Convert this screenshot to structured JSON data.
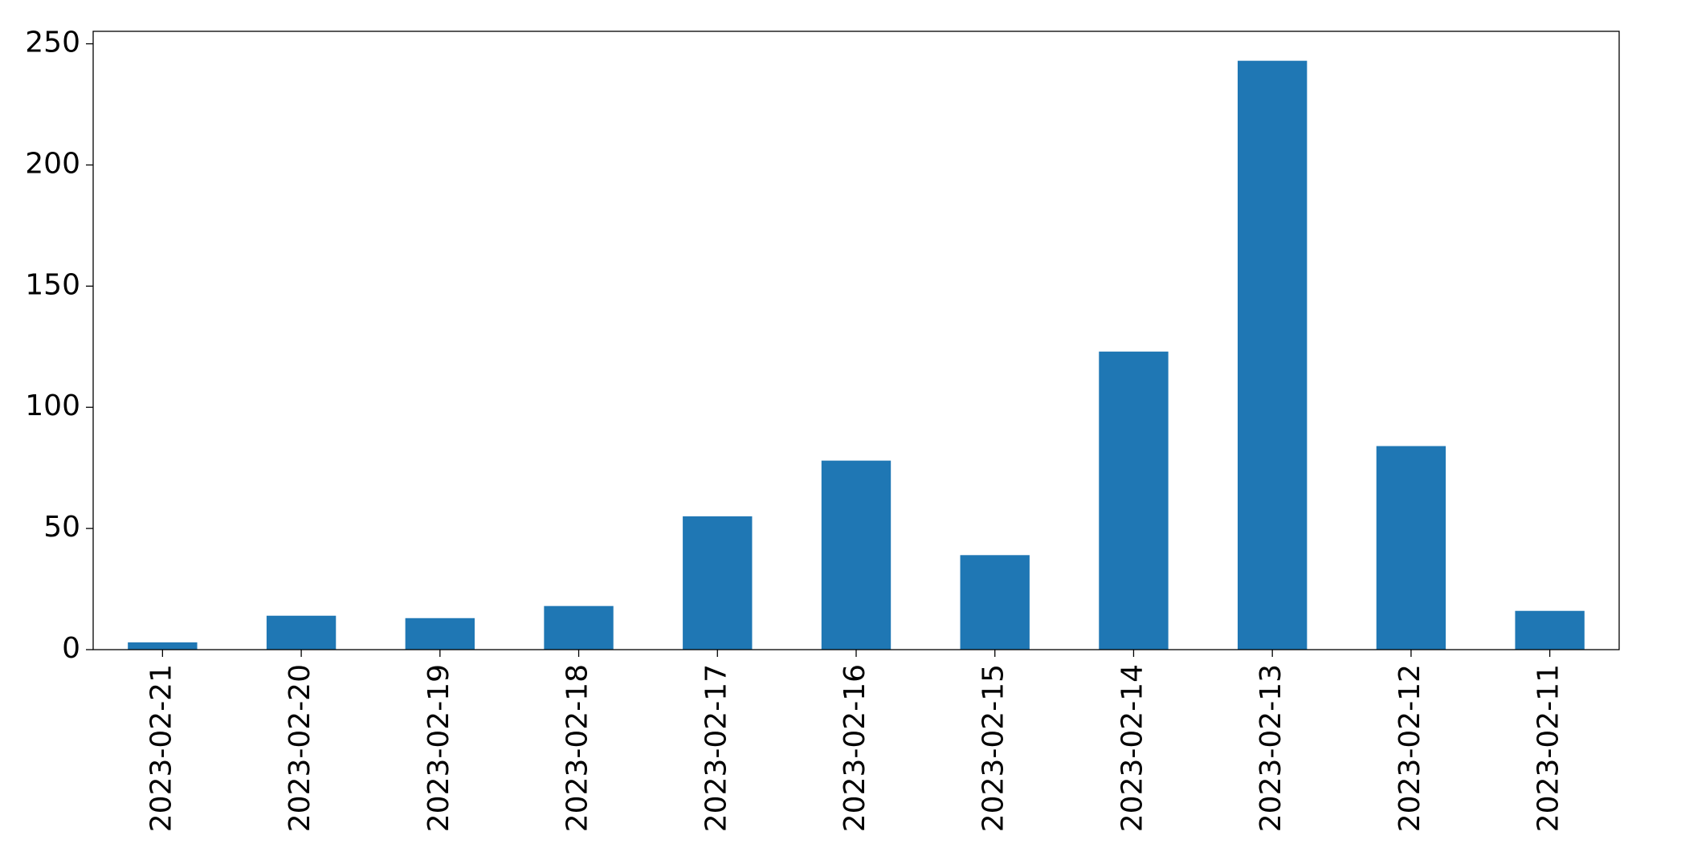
{
  "chart_data": {
    "type": "bar",
    "categories": [
      "2023-02-21",
      "2023-02-20",
      "2023-02-19",
      "2023-02-18",
      "2023-02-17",
      "2023-02-16",
      "2023-02-15",
      "2023-02-14",
      "2023-02-13",
      "2023-02-12",
      "2023-02-11"
    ],
    "values": [
      3,
      14,
      13,
      18,
      55,
      78,
      39,
      123,
      243,
      84,
      16
    ],
    "color": "#1f77b4",
    "ylim": [
      0,
      255.15
    ],
    "yticks": [
      0,
      50,
      100,
      150,
      200,
      250
    ],
    "grid": false
  }
}
